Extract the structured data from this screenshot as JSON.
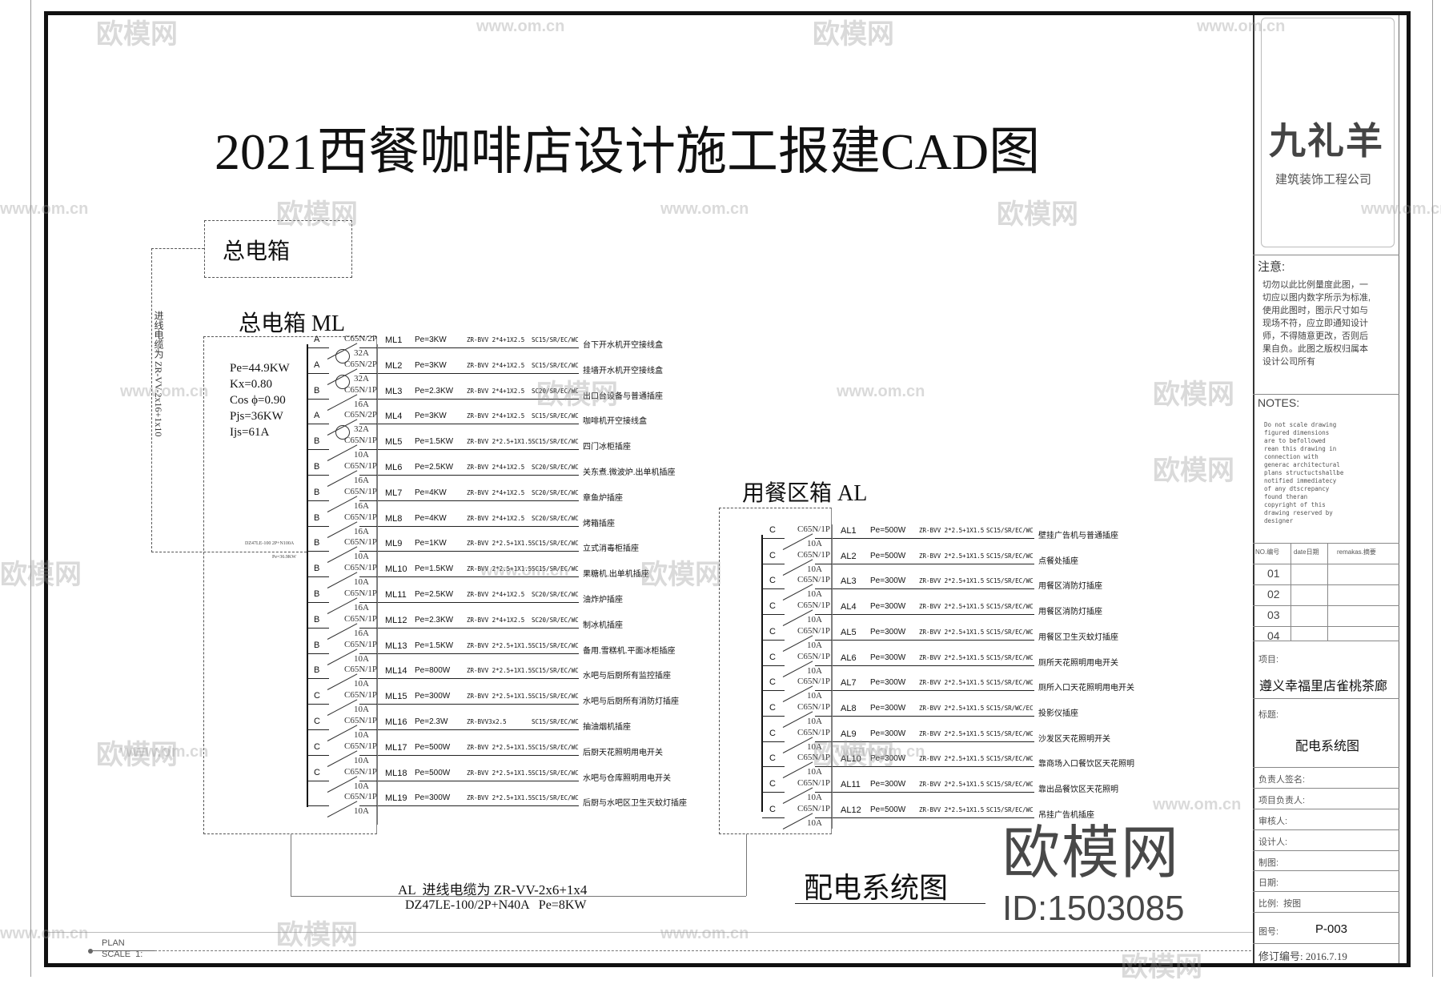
{
  "title": "2021西餐咖啡店设计施工报建CAD图",
  "main_box": {
    "label": "总电箱"
  },
  "incoming_cable_vertical": "进线电缆为 ZR-VV-2x16+1x10",
  "ml_panel": {
    "label": "总电箱 ML",
    "params": [
      "Pe=44.9KW",
      "Kx=0.80",
      "Cos ϕ=0.90",
      "Pjs=36KW",
      "Ijs=61A"
    ],
    "feed_breaker": "DZ47LE-100 2P+N100A",
    "feed_pe": "Pe=36.9KW",
    "circuits": [
      {
        "phase": "A",
        "breaker": "C65N/2P",
        "rating": "32A",
        "id": "ML1",
        "pe": "Pe=3KW",
        "cable": "ZR-BVV 2*4+1X2.5",
        "conduit": "SC15/SR/EC/WC",
        "desc": "台下开水机开空接线盒",
        "poles": 2
      },
      {
        "phase": "A",
        "breaker": "C65N/2P",
        "rating": "32A",
        "id": "ML2",
        "pe": "Pe=3KW",
        "cable": "ZR-BVV 2*4+1X2.5",
        "conduit": "SC15/SR/EC/WC",
        "desc": "挂墙开水机开空接线盒",
        "poles": 2
      },
      {
        "phase": "B",
        "breaker": "C65N/1P",
        "rating": "16A",
        "id": "ML3",
        "pe": "Pe=2.3KW",
        "cable": "ZR-BVV 2*4+1X2.5",
        "conduit": "SC20/SR/EC/WC",
        "desc": "出口台设备与普通插座",
        "poles": 1
      },
      {
        "phase": "A",
        "breaker": "C65N/2P",
        "rating": "32A",
        "id": "ML4",
        "pe": "Pe=3KW",
        "cable": "ZR-BVV 2*4+1X2.5",
        "conduit": "SC15/SR/EC/WC",
        "desc": "咖啡机开空接线盒",
        "poles": 2
      },
      {
        "phase": "B",
        "breaker": "C65N/1P",
        "rating": "10A",
        "id": "ML5",
        "pe": "Pe=1.5KW",
        "cable": "ZR-BVV 2*2.5+1X1.5",
        "conduit": "SC15/SR/EC/WC",
        "desc": "四门冰柜插座",
        "poles": 1
      },
      {
        "phase": "B",
        "breaker": "C65N/1P",
        "rating": "16A",
        "id": "ML6",
        "pe": "Pe=2.5KW",
        "cable": "ZR-BVV 2*4+1X2.5",
        "conduit": "SC20/SR/EC/WC",
        "desc": "关东煮.微波炉.出单机插座",
        "poles": 1
      },
      {
        "phase": "B",
        "breaker": "C65N/1P",
        "rating": "16A",
        "id": "ML7",
        "pe": "Pe=4KW",
        "cable": "ZR-BVV 2*4+1X2.5",
        "conduit": "SC20/SR/EC/WC",
        "desc": "章鱼炉插座",
        "poles": 1
      },
      {
        "phase": "B",
        "breaker": "C65N/1P",
        "rating": "16A",
        "id": "ML8",
        "pe": "Pe=4KW",
        "cable": "ZR-BVV 2*4+1X2.5",
        "conduit": "SC20/SR/EC/WC",
        "desc": "烤箱插座",
        "poles": 1
      },
      {
        "phase": "B",
        "breaker": "C65N/1P",
        "rating": "10A",
        "id": "ML9",
        "pe": "Pe=1KW",
        "cable": "ZR-BVV 2*2.5+1X1.5",
        "conduit": "SC15/SR/EC/WC",
        "desc": "立式消毒柜插座",
        "poles": 1
      },
      {
        "phase": "B",
        "breaker": "C65N/1P",
        "rating": "10A",
        "id": "ML10",
        "pe": "Pe=1.5KW",
        "cable": "ZR-BVV 2*2.5+1X1.5",
        "conduit": "SC15/SR/EC/WC",
        "desc": "果糖机.出单机插座",
        "poles": 1
      },
      {
        "phase": "B",
        "breaker": "C65N/1P",
        "rating": "16A",
        "id": "ML11",
        "pe": "Pe=2.5KW",
        "cable": "ZR-BVV 2*4+1X2.5",
        "conduit": "SC20/SR/EC/WC",
        "desc": "油炸炉插座",
        "poles": 1
      },
      {
        "phase": "B",
        "breaker": "C65N/1P",
        "rating": "16A",
        "id": "ML12",
        "pe": "Pe=2.3KW",
        "cable": "ZR-BVV 2*4+1X2.5",
        "conduit": "SC20/SR/EC/WC",
        "desc": "制冰机插座",
        "poles": 1
      },
      {
        "phase": "B",
        "breaker": "C65N/1P",
        "rating": "10A",
        "id": "ML13",
        "pe": "Pe=1.5KW",
        "cable": "ZR-BVV 2*2.5+1X1.5",
        "conduit": "SC15/SR/EC/WC",
        "desc": "备用.雪糕机.平面冰柜插座",
        "poles": 1
      },
      {
        "phase": "B",
        "breaker": "C65N/1P",
        "rating": "10A",
        "id": "ML14",
        "pe": "Pe=800W",
        "cable": "ZR-BVV 2*2.5+1X1.5",
        "conduit": "SC15/SR/EC/WC",
        "desc": "水吧与后厨所有监控插座",
        "poles": 1
      },
      {
        "phase": "C",
        "breaker": "C65N/1P",
        "rating": "10A",
        "id": "ML15",
        "pe": "Pe=300W",
        "cable": "ZR-BVV 2*2.5+1X1.5",
        "conduit": "SC15/SR/EC/WC",
        "desc": "水吧与后厨所有消防灯插座",
        "poles": 1
      },
      {
        "phase": "C",
        "breaker": "C65N/1P",
        "rating": "10A",
        "id": "ML16",
        "pe": "Pe=2.3W",
        "cable": "ZR-BVV3x2.5",
        "conduit": "SC15/SR/EC/WC",
        "desc": "抽油烟机插座",
        "poles": 1
      },
      {
        "phase": "C",
        "breaker": "C65N/1P",
        "rating": "10A",
        "id": "ML17",
        "pe": "Pe=500W",
        "cable": "ZR-BVV 2*2.5+1X1.5",
        "conduit": "SC15/SR/EC/WC",
        "desc": "后厨天花照明用电开关",
        "poles": 1
      },
      {
        "phase": "C",
        "breaker": "C65N/1P",
        "rating": "10A",
        "id": "ML18",
        "pe": "Pe=500W",
        "cable": "ZR-BVV 2*2.5+1X1.5",
        "conduit": "SC15/SR/EC/WC",
        "desc": "水吧与仓库照明用电开关",
        "poles": 1
      },
      {
        "phase": "",
        "breaker": "C65N/1P",
        "rating": "10A",
        "id": "ML19",
        "pe": "Pe=300W",
        "cable": "ZR-BVV 2*2.5+1X1.5",
        "conduit": "SC15/SR/EC/WC",
        "desc": "后厨与水吧区卫生灭蚊灯插座",
        "poles": 1
      }
    ]
  },
  "al_panel": {
    "label": "用餐区箱 AL",
    "cable_note": "AL  进线电缆为 ZR-VV-2x6+1x4",
    "breaker_note": "DZ47LE-100/2P+N40A   Pe=8KW",
    "circuits": [
      {
        "phase": "C",
        "breaker": "C65N/1P",
        "rating": "10A",
        "id": "AL1",
        "pe": "Pe=500W",
        "cable": "ZR-BVV 2*2.5+1X1.5",
        "conduit": "SC15/SR/EC/WC",
        "desc": "壁挂广告机与普通插座"
      },
      {
        "phase": "C",
        "breaker": "C65N/1P",
        "rating": "10A",
        "id": "AL2",
        "pe": "Pe=500W",
        "cable": "ZR-BVV 2*2.5+1X1.5",
        "conduit": "SC15/SR/EC/WC",
        "desc": "点餐处插座"
      },
      {
        "phase": "C",
        "breaker": "C65N/1P",
        "rating": "10A",
        "id": "AL3",
        "pe": "Pe=300W",
        "cable": "ZR-BVV 2*2.5+1X1.5",
        "conduit": "SC15/SR/EC/WC",
        "desc": "用餐区消防灯插座"
      },
      {
        "phase": "C",
        "breaker": "C65N/1P",
        "rating": "10A",
        "id": "AL4",
        "pe": "Pe=300W",
        "cable": "ZR-BVV 2*2.5+1X1.5",
        "conduit": "SC15/SR/EC/WC",
        "desc": "用餐区消防灯插座"
      },
      {
        "phase": "C",
        "breaker": "C65N/1P",
        "rating": "10A",
        "id": "AL5",
        "pe": "Pe=300W",
        "cable": "ZR-BVV 2*2.5+1X1.5",
        "conduit": "SC15/SR/EC/WC",
        "desc": "用餐区卫生灭蚊灯插座"
      },
      {
        "phase": "C",
        "breaker": "C65N/1P",
        "rating": "10A",
        "id": "AL6",
        "pe": "Pe=300W",
        "cable": "ZR-BVV 2*2.5+1X1.5",
        "conduit": "SC15/SR/EC/WC",
        "desc": "厕所天花照明用电开关"
      },
      {
        "phase": "C",
        "breaker": "C65N/1P",
        "rating": "10A",
        "id": "AL7",
        "pe": "Pe=300W",
        "cable": "ZR-BVV 2*2.5+1X1.5",
        "conduit": "SC15/SR/EC/WC",
        "desc": "厕所入口天花照明用电开关"
      },
      {
        "phase": "C",
        "breaker": "C65N/1P",
        "rating": "10A",
        "id": "AL8",
        "pe": "Pe=300W",
        "cable": "ZR-BVV 2*2.5+1X1.5",
        "conduit": "SC15/SR/WC/EC",
        "desc": "投影仪插座"
      },
      {
        "phase": "C",
        "breaker": "C65N/1P",
        "rating": "10A",
        "id": "AL9",
        "pe": "Pe=300W",
        "cable": "ZR-BVV 2*2.5+1X1.5",
        "conduit": "SC15/SR/EC/WC",
        "desc": "沙发区天花照明开关"
      },
      {
        "phase": "C",
        "breaker": "C65N/1P",
        "rating": "10A",
        "id": "AL10",
        "pe": "Pe=300W",
        "cable": "ZR-BVV 2*2.5+1X1.5",
        "conduit": "SC15/SR/EC/WC",
        "desc": "靠商场入口餐饮区天花照明"
      },
      {
        "phase": "C",
        "breaker": "C65N/1P",
        "rating": "10A",
        "id": "AL11",
        "pe": "Pe=300W",
        "cable": "ZR-BVV 2*2.5+1X1.5",
        "conduit": "SC15/SR/EC/WC",
        "desc": "靠出品餐饮区天花照明"
      },
      {
        "phase": "C",
        "breaker": "C65N/1P",
        "rating": "10A",
        "id": "AL12",
        "pe": "Pe=500W",
        "cable": "ZR-BVV 2*2.5+1X1.5",
        "conduit": "SC15/SR/EC/WC",
        "desc": "吊挂广告机插座"
      }
    ]
  },
  "drawing_caption": "配电系统图",
  "plan_scale": {
    "plan": "PLAN",
    "scale": "SCALE  1:"
  },
  "title_block": {
    "logo": "九礼羊",
    "company": "建筑装饰工程公司",
    "notice_heading": "注意:",
    "notice_lines": [
      "切勿以此比例量度此图，一",
      "切应以图内数字所示为标准,",
      "使用此图时，图示尺寸如与",
      "现场不符，应立即通知设计",
      "师，不得随意更改，否则后",
      "果自负。此图之版权归属本",
      "设计公司所有"
    ],
    "notes_heading": "NOTES:",
    "notes_lines": [
      "Do not scale drawing",
      "figured dimensions",
      "are to befollowed",
      "rean this drawing in",
      "connection with",
      "generac architectural",
      "plans structuctshallbe",
      "notified immediatecy",
      "of any dtscrepancy",
      "found theran",
      "copyright of this",
      "drawing reserved by",
      "designer"
    ],
    "rev_headers": [
      "NO.编号",
      "date日期",
      "remakas.摘要"
    ],
    "rev_rows": [
      "01",
      "02",
      "03",
      "04"
    ],
    "project_label": "项目:",
    "project_name": "遵义幸福里店雀桃茶廊",
    "title_label": "标题:",
    "title_value": "配电系统图",
    "sign_rows": [
      "负责人签名:",
      "项目负责人:",
      "审核人:",
      "设计人:",
      "制图:",
      "日期:",
      "比例:  按图"
    ],
    "drawing_no_label": "图号:",
    "drawing_no": "P-003",
    "revision": "修订编号: 2016.7.19"
  },
  "watermark": {
    "brand": "欧模网",
    "id": "ID:1503085",
    "site": "www.om.cn"
  }
}
